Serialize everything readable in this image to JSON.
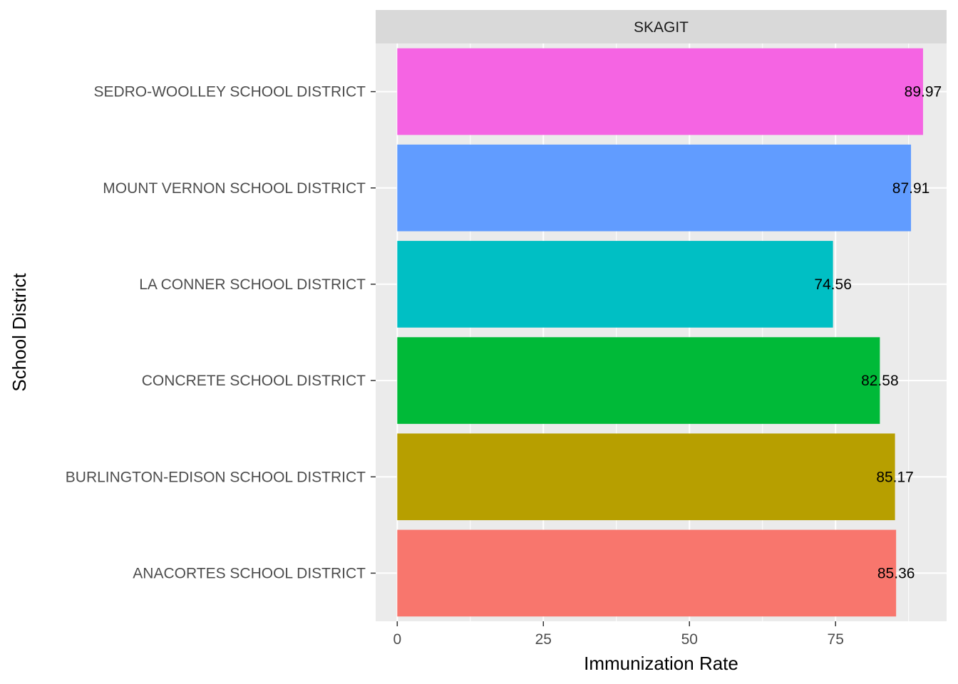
{
  "chart_data": {
    "type": "bar",
    "orientation": "horizontal",
    "facet_label": "SKAGIT",
    "xlabel": "Immunization Rate",
    "ylabel": "School District",
    "xlim": [
      -3.7,
      94.0
    ],
    "xticks": [
      0,
      25,
      50,
      75
    ],
    "xtick_labels": [
      "0",
      "25",
      "50",
      "75"
    ],
    "grid": true,
    "legend": "none",
    "categories": [
      "ANACORTES SCHOOL DISTRICT",
      "BURLINGTON-EDISON SCHOOL DISTRICT",
      "CONCRETE SCHOOL DISTRICT",
      "LA CONNER SCHOOL DISTRICT",
      "MOUNT VERNON SCHOOL DISTRICT",
      "SEDRO-WOOLLEY SCHOOL DISTRICT"
    ],
    "values": [
      85.36,
      85.17,
      82.58,
      74.56,
      87.91,
      89.97
    ],
    "value_labels": [
      "85.36",
      "85.17",
      "82.58",
      "74.56",
      "87.91",
      "89.97"
    ],
    "colors": [
      "#F8766D",
      "#B79F00",
      "#00BA38",
      "#00BFC4",
      "#619CFF",
      "#F564E3"
    ],
    "panel_background": "#EBEBEB",
    "strip_background": "#D9D9D9",
    "grid_color": "#FFFFFF"
  }
}
